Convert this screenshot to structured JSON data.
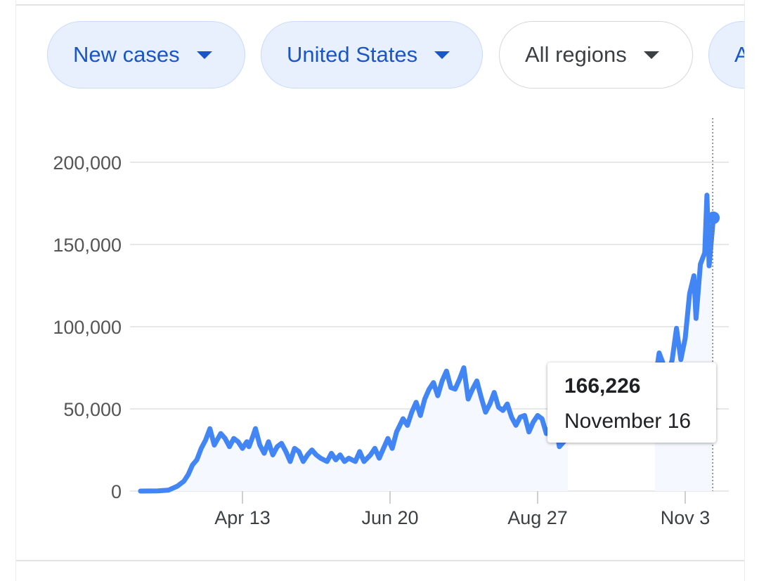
{
  "filters": [
    {
      "label": "New cases",
      "selected": true
    },
    {
      "label": "United States",
      "selected": true
    },
    {
      "label": "All regions",
      "selected": false
    },
    {
      "label": "A",
      "selected": true
    }
  ],
  "tooltip": {
    "value": "166,226",
    "date": "November 16"
  },
  "colors": {
    "line": "#4285f4",
    "area": "#f5f8fe",
    "grid": "#e8e8e8",
    "chip_text": "#1a56c4"
  },
  "chart_data": {
    "type": "area",
    "title": "",
    "xlabel": "",
    "ylabel": "",
    "y_ticks": [
      0,
      50000,
      100000,
      150000,
      200000
    ],
    "y_tick_labels": [
      "0",
      "50,000",
      "100,000",
      "150,000",
      "200,000"
    ],
    "ylim": [
      0,
      200000
    ],
    "x_ticks": [
      {
        "label": "Apr 13",
        "date": "2020-04-13"
      },
      {
        "label": "Jun 20",
        "date": "2020-06-20"
      },
      {
        "label": "Aug 27",
        "date": "2020-08-27"
      },
      {
        "label": "Nov 3",
        "date": "2020-11-03"
      }
    ],
    "grid": true,
    "highlight": {
      "date": "2020-11-16",
      "value": 166226
    },
    "series": [
      {
        "points": [
          [
            "2020-02-26",
            0
          ],
          [
            "2020-03-05",
            100
          ],
          [
            "2020-03-10",
            600
          ],
          [
            "2020-03-14",
            3000
          ],
          [
            "2020-03-17",
            6000
          ],
          [
            "2020-03-19",
            10000
          ],
          [
            "2020-03-21",
            16000
          ],
          [
            "2020-03-23",
            19000
          ],
          [
            "2020-03-25",
            26000
          ],
          [
            "2020-03-27",
            31000
          ],
          [
            "2020-03-29",
            38000
          ],
          [
            "2020-03-31",
            28000
          ],
          [
            "2020-04-03",
            35000
          ],
          [
            "2020-04-05",
            32000
          ],
          [
            "2020-04-07",
            27000
          ],
          [
            "2020-04-09",
            32000
          ],
          [
            "2020-04-11",
            30000
          ],
          [
            "2020-04-13",
            26000
          ],
          [
            "2020-04-15",
            30000
          ],
          [
            "2020-04-16",
            27000
          ],
          [
            "2020-04-18",
            34000
          ],
          [
            "2020-04-19",
            38000
          ],
          [
            "2020-04-21",
            28000
          ],
          [
            "2020-04-23",
            23000
          ],
          [
            "2020-04-25",
            30000
          ],
          [
            "2020-04-27",
            22000
          ],
          [
            "2020-04-29",
            27000
          ],
          [
            "2020-05-01",
            29000
          ],
          [
            "2020-05-03",
            24000
          ],
          [
            "2020-05-05",
            18000
          ],
          [
            "2020-05-07",
            26000
          ],
          [
            "2020-05-09",
            24000
          ],
          [
            "2020-05-11",
            18000
          ],
          [
            "2020-05-13",
            22000
          ],
          [
            "2020-05-15",
            25000
          ],
          [
            "2020-05-17",
            22000
          ],
          [
            "2020-05-19",
            20000
          ],
          [
            "2020-05-22",
            18000
          ],
          [
            "2020-05-24",
            23000
          ],
          [
            "2020-05-26",
            19000
          ],
          [
            "2020-05-28",
            22000
          ],
          [
            "2020-05-30",
            18000
          ],
          [
            "2020-06-01",
            20000
          ],
          [
            "2020-06-04",
            18000
          ],
          [
            "2020-06-06",
            24000
          ],
          [
            "2020-06-08",
            18000
          ],
          [
            "2020-06-11",
            22000
          ],
          [
            "2020-06-13",
            26000
          ],
          [
            "2020-06-15",
            20000
          ],
          [
            "2020-06-17",
            26000
          ],
          [
            "2020-06-19",
            32000
          ],
          [
            "2020-06-21",
            26000
          ],
          [
            "2020-06-23",
            36000
          ],
          [
            "2020-06-26",
            44000
          ],
          [
            "2020-06-28",
            40000
          ],
          [
            "2020-06-30",
            48000
          ],
          [
            "2020-07-02",
            54000
          ],
          [
            "2020-07-04",
            46000
          ],
          [
            "2020-07-06",
            56000
          ],
          [
            "2020-07-08",
            62000
          ],
          [
            "2020-07-10",
            66000
          ],
          [
            "2020-07-12",
            58000
          ],
          [
            "2020-07-14",
            67000
          ],
          [
            "2020-07-16",
            73000
          ],
          [
            "2020-07-18",
            63000
          ],
          [
            "2020-07-20",
            62000
          ],
          [
            "2020-07-22",
            68000
          ],
          [
            "2020-07-24",
            75000
          ],
          [
            "2020-07-26",
            56000
          ],
          [
            "2020-07-28",
            62000
          ],
          [
            "2020-07-30",
            67000
          ],
          [
            "2020-08-01",
            57000
          ],
          [
            "2020-08-03",
            48000
          ],
          [
            "2020-08-05",
            53000
          ],
          [
            "2020-08-07",
            60000
          ],
          [
            "2020-08-09",
            51000
          ],
          [
            "2020-08-11",
            49000
          ],
          [
            "2020-08-13",
            53000
          ],
          [
            "2020-08-15",
            45000
          ],
          [
            "2020-08-17",
            40000
          ],
          [
            "2020-08-19",
            45000
          ],
          [
            "2020-08-21",
            46000
          ],
          [
            "2020-08-23",
            36000
          ],
          [
            "2020-08-25",
            42000
          ],
          [
            "2020-08-27",
            46000
          ],
          [
            "2020-08-29",
            44000
          ],
          [
            "2020-08-31",
            35000
          ],
          [
            "2020-09-02",
            39000
          ],
          [
            "2020-09-04",
            44000
          ],
          [
            "2020-09-06",
            27000
          ],
          [
            "2020-09-08",
            30000
          ],
          [
            "2020-09-10",
            34000
          ]
        ]
      },
      {
        "points": [
          [
            "2020-10-20",
            66000
          ],
          [
            "2020-10-22",
            84000
          ],
          [
            "2020-10-24",
            77000
          ],
          [
            "2020-10-26",
            70000
          ],
          [
            "2020-10-28",
            80000
          ],
          [
            "2020-10-30",
            99000
          ],
          [
            "2020-11-01",
            80000
          ],
          [
            "2020-11-03",
            93000
          ],
          [
            "2020-11-05",
            120000
          ],
          [
            "2020-11-07",
            131000
          ],
          [
            "2020-11-08",
            105000
          ],
          [
            "2020-11-10",
            138000
          ],
          [
            "2020-11-12",
            145000
          ],
          [
            "2020-11-13",
            180000
          ],
          [
            "2020-11-14",
            137000
          ],
          [
            "2020-11-16",
            166226
          ]
        ]
      }
    ]
  }
}
